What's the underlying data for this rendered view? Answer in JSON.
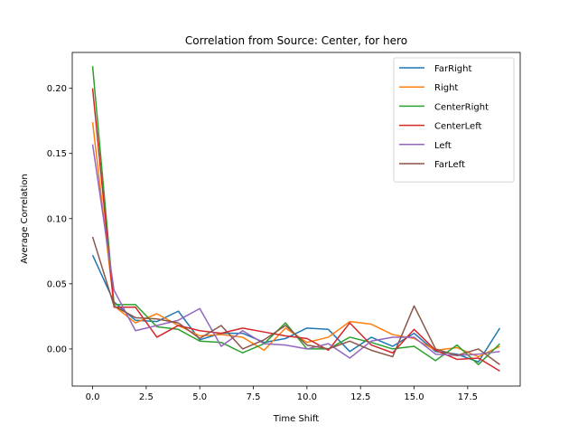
{
  "chart_data": {
    "type": "line",
    "title": "Correlation from Source: Center, for hero",
    "xlabel": "Time Shift",
    "ylabel": "Average Correlation",
    "xlim": [
      -0.95,
      19.95
    ],
    "ylim": [
      -0.0285,
      0.2275
    ],
    "xticks": [
      0.0,
      2.5,
      5.0,
      7.5,
      10.0,
      12.5,
      15.0,
      17.5
    ],
    "xtick_labels": [
      "0.0",
      "2.5",
      "5.0",
      "7.5",
      "10.0",
      "12.5",
      "15.0",
      "17.5"
    ],
    "yticks": [
      0.0,
      0.05,
      0.1,
      0.15,
      0.2
    ],
    "ytick_labels": [
      "0.00",
      "0.05",
      "0.10",
      "0.15",
      "0.20"
    ],
    "grid": false,
    "legend_position": "upper right",
    "x": [
      0,
      1,
      2,
      3,
      4,
      5,
      6,
      7,
      8,
      9,
      10,
      11,
      12,
      13,
      14,
      15,
      16,
      17,
      18,
      19
    ],
    "series": [
      {
        "name": "FarRight",
        "color": "#1f77b4",
        "values": [
          0.072,
          0.036,
          0.022,
          0.021,
          0.029,
          0.007,
          0.012,
          0.012,
          0.005,
          0.008,
          0.016,
          0.015,
          -0.002,
          0.009,
          0.002,
          0.012,
          -0.002,
          -0.004,
          -0.01,
          0.016
        ]
      },
      {
        "name": "Right",
        "color": "#ff7f0e",
        "values": [
          0.174,
          0.033,
          0.02,
          0.027,
          0.018,
          0.01,
          0.011,
          0.009,
          -0.001,
          0.016,
          0.005,
          0.009,
          0.021,
          0.019,
          0.011,
          0.008,
          -0.001,
          0.001,
          -0.006,
          0.002
        ]
      },
      {
        "name": "CenterRight",
        "color": "#2ca02c",
        "values": [
          0.217,
          0.034,
          0.034,
          0.017,
          0.015,
          0.006,
          0.005,
          -0.003,
          0.004,
          0.02,
          0.0,
          0.0,
          0.009,
          0.005,
          0.0,
          0.002,
          -0.009,
          0.003,
          -0.012,
          0.004
        ]
      },
      {
        "name": "CenterLeft",
        "color": "#d62728",
        "values": [
          0.2,
          0.032,
          0.032,
          0.009,
          0.018,
          0.014,
          0.012,
          0.016,
          0.013,
          0.01,
          0.008,
          -0.001,
          0.02,
          0.003,
          -0.003,
          0.015,
          -0.001,
          -0.008,
          -0.007,
          -0.017
        ]
      },
      {
        "name": "Left",
        "color": "#9467bd",
        "values": [
          0.157,
          0.045,
          0.014,
          0.018,
          0.022,
          0.031,
          0.002,
          0.014,
          0.004,
          0.003,
          0.0,
          0.004,
          -0.007,
          0.006,
          0.009,
          0.009,
          -0.004,
          -0.005,
          -0.004,
          -0.002
        ]
      },
      {
        "name": "FarLeft",
        "color": "#8c564b",
        "values": [
          0.086,
          0.033,
          0.024,
          0.023,
          0.02,
          0.008,
          0.018,
          0.0,
          0.007,
          0.018,
          0.003,
          0.0,
          0.006,
          -0.001,
          -0.006,
          0.033,
          0.0,
          -0.005,
          0.0,
          -0.012
        ]
      }
    ]
  }
}
